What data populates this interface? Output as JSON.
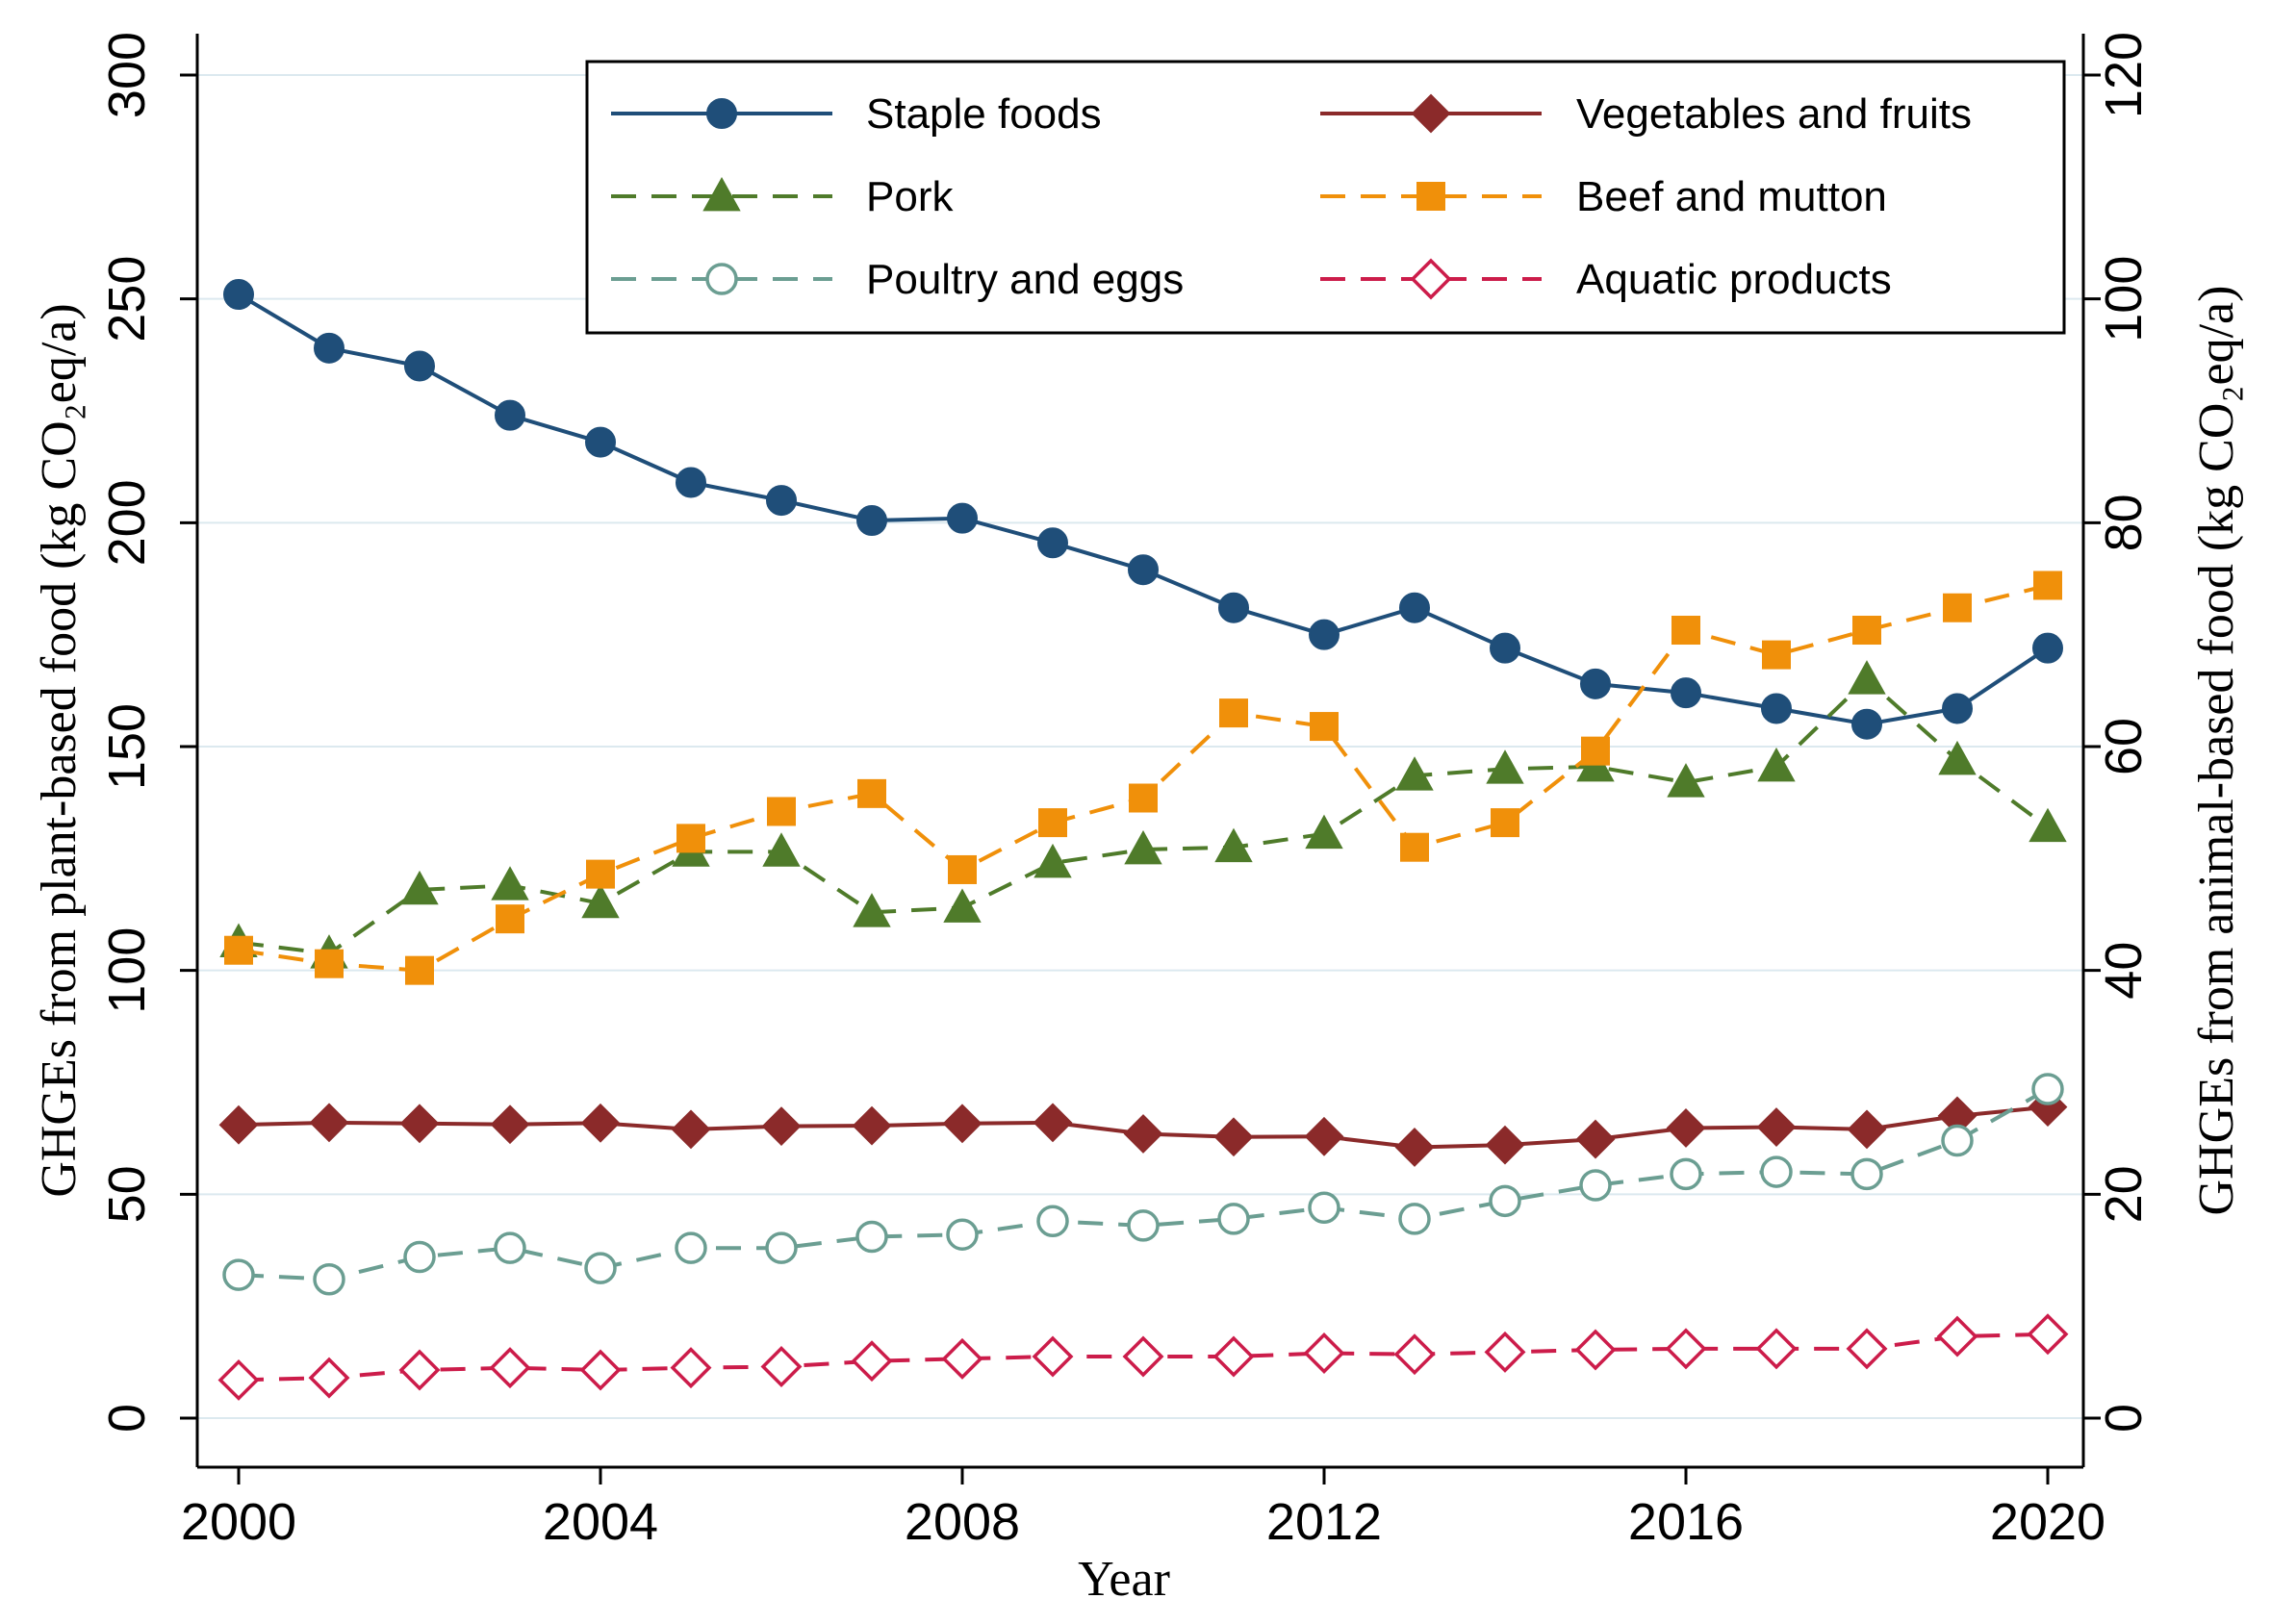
{
  "chart_data": {
    "type": "line",
    "title": "",
    "xlabel": "Year",
    "ylabel_left": "GHGEs from plant-based food (kg CO₂eq/a)",
    "ylabel_right": "GHGEs from animal-based food (kg CO₂eq/a)",
    "xlim": [
      2000,
      2020
    ],
    "xticks": [
      2000,
      2004,
      2008,
      2012,
      2016,
      2020
    ],
    "ylim_left": [
      0,
      300
    ],
    "yticks_left": [
      0,
      50,
      100,
      150,
      200,
      250,
      300
    ],
    "ylim_right": [
      0,
      120
    ],
    "yticks_right": [
      0,
      20,
      40,
      60,
      80,
      100,
      120
    ],
    "grid": true,
    "legend_position": "top-right",
    "x": [
      2000,
      2001,
      2002,
      2003,
      2004,
      2005,
      2006,
      2007,
      2008,
      2009,
      2010,
      2011,
      2012,
      2013,
      2014,
      2015,
      2016,
      2017,
      2018,
      2019,
      2020
    ],
    "series": [
      {
        "name": "Staple foods",
        "axis": "left",
        "color": "#1f4e79",
        "line": "solid",
        "marker": "circle-filled",
        "values": [
          251,
          239,
          235,
          224,
          218,
          209,
          205,
          200.5,
          201,
          195.5,
          189.5,
          181,
          175,
          181,
          172,
          164,
          162,
          158.5,
          155,
          158.5,
          172
        ]
      },
      {
        "name": "Vegetables and fruits",
        "axis": "left",
        "color": "#8b2a2a",
        "line": "solid",
        "marker": "diamond-filled",
        "values": [
          65.5,
          66,
          65.8,
          65.6,
          65.9,
          64.5,
          65.2,
          65.3,
          65.8,
          66,
          63.5,
          62.8,
          62.9,
          60.5,
          61,
          62.3,
          64.8,
          65,
          64.5,
          67.5,
          69.5
        ]
      },
      {
        "name": "Pork",
        "axis": "right",
        "color": "#4f7b2a",
        "line": "dashed",
        "marker": "triangle-filled",
        "values": [
          42.5,
          41.5,
          47.2,
          47.6,
          46,
          50.6,
          50.6,
          45.2,
          45.6,
          49.6,
          50.8,
          51,
          52.2,
          57.4,
          58,
          58.2,
          56.8,
          58.2,
          66,
          58.8,
          52.8
        ]
      },
      {
        "name": "Beef and mutton",
        "axis": "right",
        "color": "#f0900a",
        "line": "dashed",
        "marker": "square-filled",
        "values": [
          41.8,
          40.6,
          40,
          44.6,
          48.6,
          51.8,
          54.2,
          55.8,
          49,
          53.2,
          55.4,
          63,
          61.8,
          51,
          53.2,
          59.6,
          70.4,
          68.2,
          70.4,
          72.4,
          74.4
        ]
      },
      {
        "name": "Poultry and eggs",
        "axis": "right",
        "color": "#6b9e92",
        "line": "dashed",
        "marker": "circle-open",
        "values": [
          12.8,
          12.4,
          14.4,
          15.2,
          13.4,
          15.2,
          15.2,
          16.2,
          16.4,
          17.6,
          17.2,
          17.8,
          18.8,
          17.8,
          19.4,
          20.8,
          21.8,
          22,
          21.8,
          24.8,
          29.4
        ]
      },
      {
        "name": "Aquatic products",
        "axis": "right",
        "color": "#cc1c4a",
        "line": "dashed",
        "marker": "diamond-open",
        "values": [
          3.4,
          3.6,
          4.3,
          4.5,
          4.3,
          4.5,
          4.6,
          5.1,
          5.3,
          5.5,
          5.5,
          5.5,
          5.8,
          5.7,
          5.9,
          6.1,
          6.2,
          6.2,
          6.2,
          7.3,
          7.5
        ]
      }
    ]
  }
}
